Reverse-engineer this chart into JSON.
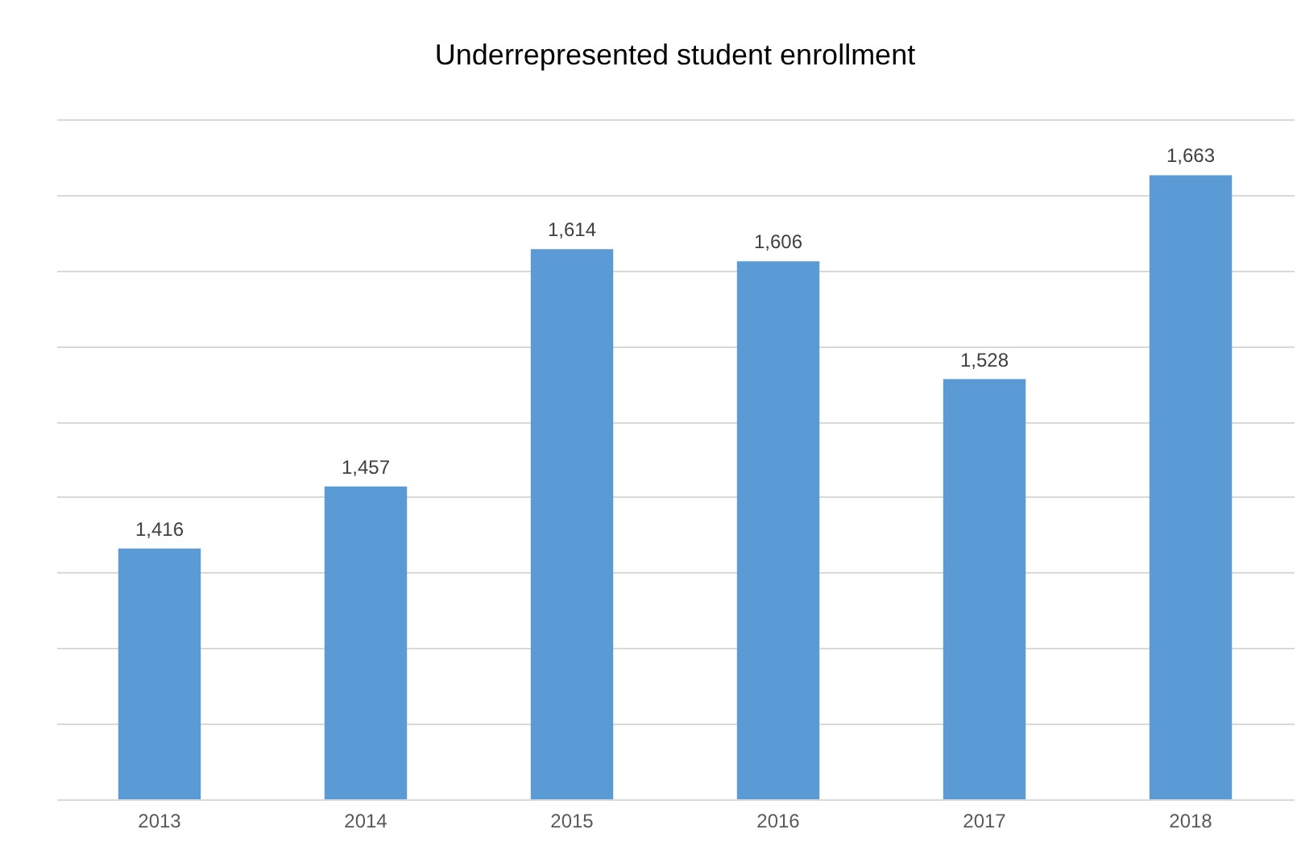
{
  "chart_data": {
    "type": "bar",
    "title": "Underrepresented student enrollment",
    "categories": [
      "2013",
      "2014",
      "2015",
      "2016",
      "2017",
      "2018"
    ],
    "values": [
      1416,
      1457,
      1614,
      1606,
      1528,
      1663
    ],
    "color": "#5b9bd5",
    "ylim": [
      1250,
      1700
    ],
    "yticks": [
      {
        "value": 1250,
        "label": null
      },
      {
        "value": 1300,
        "label": null
      },
      {
        "value": 1350,
        "label": null
      },
      {
        "value": 1400,
        "label": null
      },
      {
        "value": 1450,
        "label": null
      },
      {
        "value": 1500,
        "label": null
      },
      {
        "value": 1550,
        "label": null
      },
      {
        "value": 1600,
        "label": null
      },
      {
        "value": 1650,
        "label": null
      },
      {
        "value": 1700,
        "label": null
      }
    ],
    "value_labels": [
      "1,416",
      "1,457",
      "1,614",
      "1,606",
      "1,528",
      "1,663"
    ],
    "grid": "y",
    "tick_labels": "x"
  }
}
